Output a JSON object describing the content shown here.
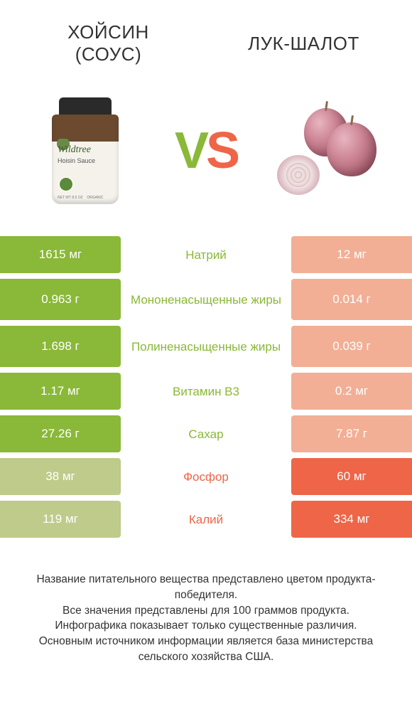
{
  "colors": {
    "left_primary": "#8ab838",
    "left_muted": "#becb8a",
    "right_primary": "#ee6548",
    "right_muted": "#f2af95",
    "label_green": "#8ab838",
    "label_orange": "#ee6548",
    "background": "#ffffff",
    "text": "#333333"
  },
  "header": {
    "left_title_line1": "Хойсин",
    "left_title_line2": "(соус)",
    "right_title": "Лук-шалот"
  },
  "vs": {
    "v": "V",
    "s": "S"
  },
  "jar": {
    "brand": "Wildtree",
    "product": "Hoisin Sauce"
  },
  "rows": [
    {
      "left": "1615 мг",
      "label": "Натрий",
      "right": "12 мг",
      "winner": "left",
      "multiline": false
    },
    {
      "left": "0.963 г",
      "label": "Мононенасыщенные жиры",
      "right": "0.014 г",
      "winner": "left",
      "multiline": true
    },
    {
      "left": "1.698 г",
      "label": "Полиненасыщенные жиры",
      "right": "0.039 г",
      "winner": "left",
      "multiline": true
    },
    {
      "left": "1.17 мг",
      "label": "Витамин B3",
      "right": "0.2 мг",
      "winner": "left",
      "multiline": false
    },
    {
      "left": "27.26 г",
      "label": "Сахар",
      "right": "7.87 г",
      "winner": "left",
      "multiline": false
    },
    {
      "left": "38 мг",
      "label": "Фосфор",
      "right": "60 мг",
      "winner": "right",
      "multiline": false
    },
    {
      "left": "119 мг",
      "label": "Калий",
      "right": "334 мг",
      "winner": "right",
      "multiline": false
    }
  ],
  "footer": {
    "line1": "Название питательного вещества представлено цветом продукта-победителя.",
    "line2": "Все значения представлены для 100 граммов продукта.",
    "line3": "Инфографика показывает только существенные различия.",
    "line4": "Основным источником информации является база министерства сельского хозяйства США."
  }
}
